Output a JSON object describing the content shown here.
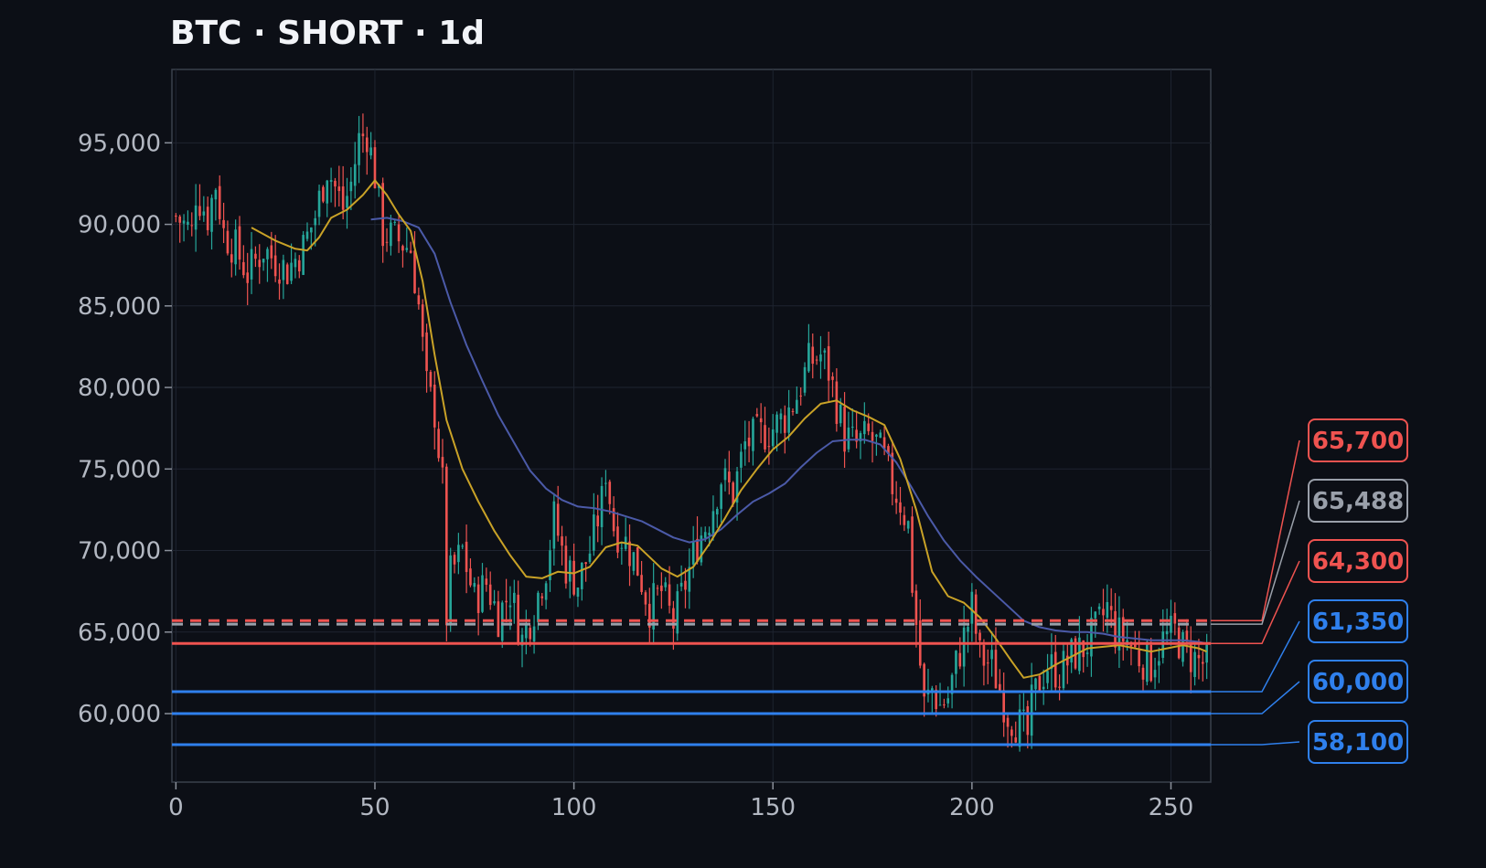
{
  "title": "BTC · SHORT · 1d",
  "colors": {
    "background": "#0c0f16",
    "grid": "#1e2430",
    "frame": "#3a404c",
    "up": "#26a69a",
    "down": "#ef5350",
    "ema_fast": "#c9a227",
    "ema_slow": "#4b5aa8",
    "entry": "#ef5350",
    "current": "#9aa0aa",
    "take_profit": "#2f80ed"
  },
  "chart_data": {
    "type": "candlestick",
    "title": "BTC · SHORT · 1d",
    "xlim": [
      -1,
      260
    ],
    "ylim": [
      55800,
      99500
    ],
    "xticks": [
      0,
      50,
      100,
      150,
      200,
      250
    ],
    "yticks": [
      60000,
      65000,
      70000,
      75000,
      80000,
      85000,
      90000,
      95000
    ],
    "xtick_labels": [
      "0",
      "50",
      "100",
      "150",
      "200",
      "250"
    ],
    "ytick_labels": [
      "60,000",
      "65,000",
      "70,000",
      "75,000",
      "80,000",
      "85,000",
      "90,000",
      "95,000"
    ],
    "grid": true,
    "n_candles": 260,
    "close_path": [
      [
        0,
        90500
      ],
      [
        4,
        89500
      ],
      [
        5,
        92000
      ],
      [
        8,
        90500
      ],
      [
        10,
        92500
      ],
      [
        12,
        89500
      ],
      [
        15,
        88500
      ],
      [
        18,
        87000
      ],
      [
        22,
        88500
      ],
      [
        25,
        87800
      ],
      [
        28,
        87200
      ],
      [
        32,
        88600
      ],
      [
        35,
        90500
      ],
      [
        38,
        93500
      ],
      [
        42,
        91000
      ],
      [
        44,
        92500
      ],
      [
        46,
        95200
      ],
      [
        48,
        95600
      ],
      [
        50,
        93000
      ],
      [
        52,
        89500
      ],
      [
        56,
        89000
      ],
      [
        59,
        88500
      ],
      [
        61,
        85000
      ],
      [
        63,
        80000
      ],
      [
        65,
        78500
      ],
      [
        67,
        74000
      ],
      [
        68,
        66000
      ],
      [
        69,
        68500
      ],
      [
        72,
        70000
      ],
      [
        75,
        67000
      ],
      [
        78,
        68000
      ],
      [
        81,
        66000
      ],
      [
        84,
        67500
      ],
      [
        87,
        64500
      ],
      [
        90,
        66500
      ],
      [
        93,
        69000
      ],
      [
        95,
        72000
      ],
      [
        98,
        69000
      ],
      [
        101,
        68000
      ],
      [
        104,
        70000
      ],
      [
        107,
        73000
      ],
      [
        108,
        75000
      ],
      [
        110,
        71500
      ],
      [
        113,
        70500
      ],
      [
        116,
        69000
      ],
      [
        119,
        66500
      ],
      [
        122,
        67500
      ],
      [
        125,
        65500
      ],
      [
        128,
        68000
      ],
      [
        131,
        70500
      ],
      [
        134,
        72000
      ],
      [
        137,
        74500
      ],
      [
        140,
        73500
      ],
      [
        143,
        76500
      ],
      [
        146,
        77000
      ],
      [
        150,
        77500
      ],
      [
        153,
        78200
      ],
      [
        156,
        79500
      ],
      [
        159,
        81500
      ],
      [
        162,
        82000
      ],
      [
        164,
        81000
      ],
      [
        166,
        79000
      ],
      [
        168,
        77000
      ],
      [
        171,
        76500
      ],
      [
        174,
        77000
      ],
      [
        176,
        76500
      ],
      [
        178,
        75500
      ],
      [
        180,
        74000
      ],
      [
        182,
        73000
      ],
      [
        184,
        71500
      ],
      [
        185,
        68000
      ],
      [
        186,
        65500
      ],
      [
        187,
        63000
      ],
      [
        188,
        60500
      ],
      [
        190,
        61500
      ],
      [
        192,
        60500
      ],
      [
        194,
        61000
      ],
      [
        196,
        63000
      ],
      [
        199,
        65500
      ],
      [
        200,
        66500
      ],
      [
        202,
        63500
      ],
      [
        205,
        63000
      ],
      [
        207,
        61500
      ],
      [
        209,
        60000
      ],
      [
        211,
        59500
      ],
      [
        213,
        59000
      ],
      [
        214,
        58600
      ],
      [
        215,
        60500
      ],
      [
        217,
        62000
      ],
      [
        219,
        63000
      ],
      [
        222,
        62500
      ],
      [
        225,
        63500
      ],
      [
        228,
        64000
      ],
      [
        231,
        65000
      ],
      [
        234,
        66500
      ],
      [
        236,
        65000
      ],
      [
        239,
        64500
      ],
      [
        242,
        63500
      ],
      [
        245,
        63000
      ],
      [
        248,
        64500
      ],
      [
        251,
        65000
      ],
      [
        253,
        64000
      ],
      [
        255,
        63500
      ],
      [
        257,
        63200
      ],
      [
        259,
        63000
      ]
    ],
    "ema_fast": [
      [
        19,
        89800
      ],
      [
        25,
        89000
      ],
      [
        30,
        88500
      ],
      [
        33,
        88400
      ],
      [
        36,
        89200
      ],
      [
        39,
        90400
      ],
      [
        43,
        90900
      ],
      [
        47,
        91800
      ],
      [
        50,
        92700
      ],
      [
        53,
        91800
      ],
      [
        56,
        90600
      ],
      [
        59,
        89600
      ],
      [
        62,
        86500
      ],
      [
        65,
        82000
      ],
      [
        68,
        78000
      ],
      [
        72,
        75000
      ],
      [
        76,
        73000
      ],
      [
        80,
        71200
      ],
      [
        84,
        69700
      ],
      [
        88,
        68400
      ],
      [
        92,
        68300
      ],
      [
        96,
        68700
      ],
      [
        100,
        68600
      ],
      [
        104,
        69000
      ],
      [
        108,
        70200
      ],
      [
        112,
        70500
      ],
      [
        116,
        70300
      ],
      [
        119,
        69600
      ],
      [
        122,
        68900
      ],
      [
        126,
        68400
      ],
      [
        130,
        69000
      ],
      [
        134,
        70400
      ],
      [
        138,
        72000
      ],
      [
        142,
        73700
      ],
      [
        146,
        75000
      ],
      [
        150,
        76200
      ],
      [
        154,
        77000
      ],
      [
        158,
        78100
      ],
      [
        162,
        79000
      ],
      [
        166,
        79200
      ],
      [
        170,
        78600
      ],
      [
        174,
        78200
      ],
      [
        178,
        77700
      ],
      [
        182,
        75600
      ],
      [
        186,
        72500
      ],
      [
        190,
        68700
      ],
      [
        194,
        67200
      ],
      [
        198,
        66800
      ],
      [
        202,
        65900
      ],
      [
        206,
        64600
      ],
      [
        210,
        63200
      ],
      [
        213,
        62200
      ],
      [
        217,
        62400
      ],
      [
        221,
        63000
      ],
      [
        225,
        63500
      ],
      [
        229,
        64000
      ],
      [
        233,
        64100
      ],
      [
        237,
        64200
      ],
      [
        241,
        64000
      ],
      [
        245,
        63800
      ],
      [
        249,
        64000
      ],
      [
        253,
        64200
      ],
      [
        257,
        64000
      ],
      [
        259,
        63800
      ]
    ],
    "ema_slow": [
      [
        49,
        90300
      ],
      [
        53,
        90400
      ],
      [
        57,
        90200
      ],
      [
        61,
        89800
      ],
      [
        65,
        88200
      ],
      [
        69,
        85200
      ],
      [
        73,
        82600
      ],
      [
        77,
        80400
      ],
      [
        81,
        78300
      ],
      [
        85,
        76600
      ],
      [
        89,
        74900
      ],
      [
        93,
        73800
      ],
      [
        97,
        73100
      ],
      [
        101,
        72700
      ],
      [
        105,
        72600
      ],
      [
        109,
        72400
      ],
      [
        113,
        72100
      ],
      [
        117,
        71800
      ],
      [
        121,
        71300
      ],
      [
        125,
        70800
      ],
      [
        129,
        70500
      ],
      [
        133,
        70700
      ],
      [
        137,
        71300
      ],
      [
        141,
        72200
      ],
      [
        145,
        73000
      ],
      [
        149,
        73500
      ],
      [
        153,
        74100
      ],
      [
        157,
        75100
      ],
      [
        161,
        76000
      ],
      [
        165,
        76700
      ],
      [
        169,
        76800
      ],
      [
        173,
        76800
      ],
      [
        177,
        76500
      ],
      [
        181,
        75400
      ],
      [
        185,
        73800
      ],
      [
        189,
        72100
      ],
      [
        193,
        70600
      ],
      [
        197,
        69400
      ],
      [
        201,
        68400
      ],
      [
        205,
        67500
      ],
      [
        209,
        66600
      ],
      [
        213,
        65700
      ],
      [
        217,
        65300
      ],
      [
        221,
        65100
      ],
      [
        225,
        65000
      ],
      [
        229,
        65000
      ],
      [
        233,
        64900
      ],
      [
        237,
        64700
      ],
      [
        241,
        64600
      ],
      [
        245,
        64500
      ],
      [
        249,
        64500
      ],
      [
        253,
        64500
      ],
      [
        257,
        64400
      ],
      [
        259,
        64300
      ]
    ],
    "levels": [
      {
        "value": 65700,
        "label": "65,700",
        "kind": "entry",
        "style": "dashed"
      },
      {
        "value": 65488,
        "label": "65,488",
        "kind": "current",
        "style": "dashed"
      },
      {
        "value": 64300,
        "label": "64,300",
        "kind": "entry",
        "style": "solid"
      },
      {
        "value": 61350,
        "label": "61,350",
        "kind": "take_profit",
        "style": "solid"
      },
      {
        "value": 60000,
        "label": "60,000",
        "kind": "take_profit",
        "style": "solid"
      },
      {
        "value": 58100,
        "label": "58,100",
        "kind": "take_profit",
        "style": "solid"
      }
    ]
  }
}
